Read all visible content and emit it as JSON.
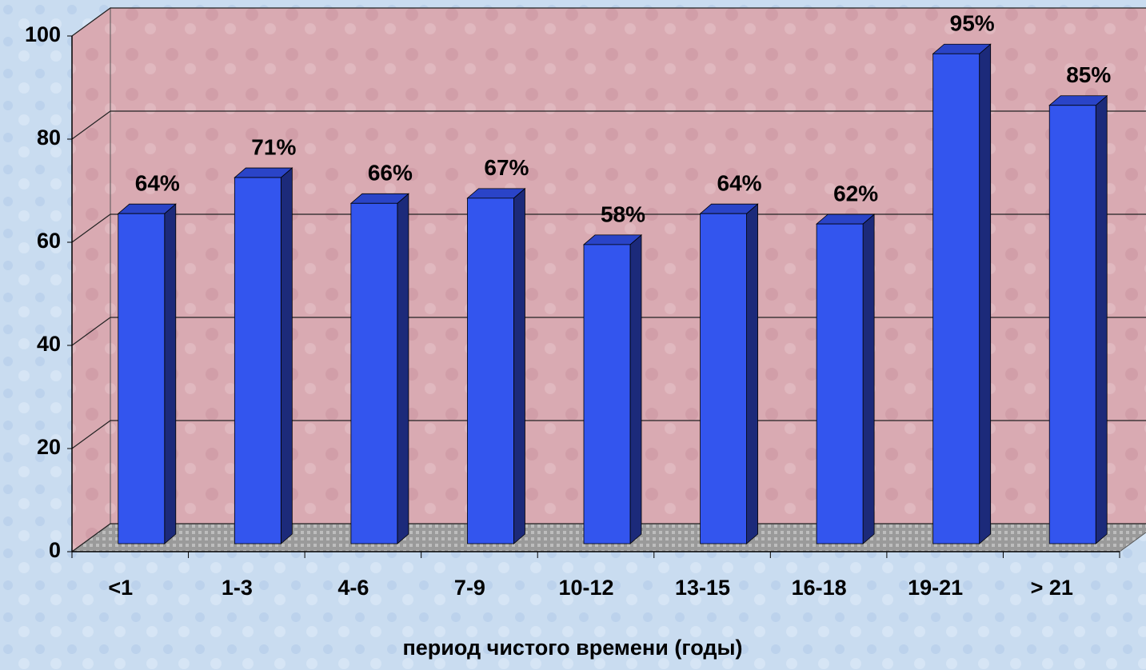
{
  "chart_data": {
    "type": "bar3d",
    "categories": [
      "<1",
      "1-3",
      "4-6",
      "7-9",
      "10-12",
      "13-15",
      "16-18",
      "19-21",
      "> 21"
    ],
    "values": [
      64,
      71,
      66,
      67,
      58,
      64,
      62,
      95,
      85
    ],
    "value_labels": [
      "64%",
      "71%",
      "66%",
      "67%",
      "58%",
      "64%",
      "62%",
      "95%",
      "85%"
    ],
    "color": "#3355ee",
    "x_label": "период чистого времени (годы)",
    "ylim": [
      0,
      100
    ],
    "yticks": [
      0,
      20,
      40,
      60,
      80,
      100
    ],
    "grid": true
  }
}
